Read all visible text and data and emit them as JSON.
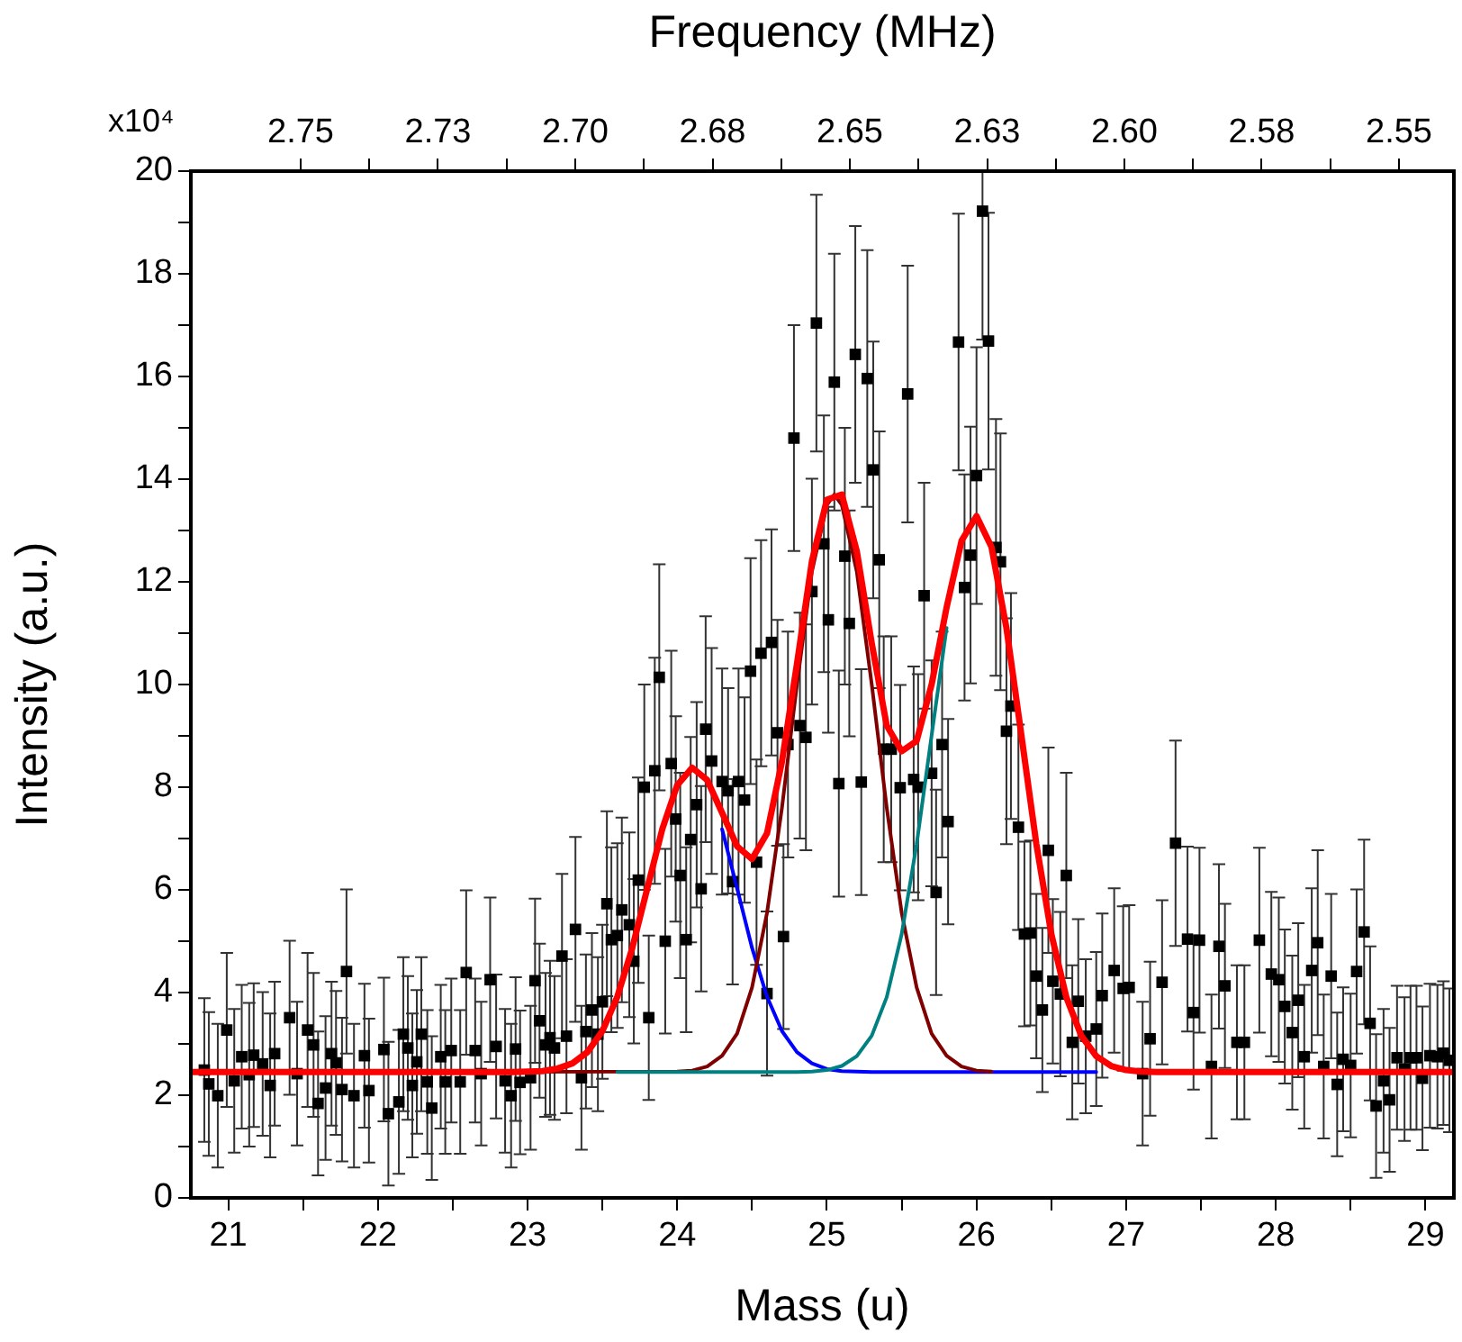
{
  "chart_data": {
    "type": "scatter",
    "xlabel": "Mass (u)",
    "ylabel": "Intensity (a.u.)",
    "x2label": "Frequency (MHz)",
    "annotations": [
      "x10⁴"
    ],
    "marker": "square",
    "xlim": [
      20.75,
      29.19
    ],
    "xticks": [
      21,
      {
        "value": 21.5,
        "label": null
      },
      22,
      {
        "value": 22.5,
        "label": null
      },
      23,
      {
        "value": 23.5,
        "label": null
      },
      24,
      {
        "value": 24.5,
        "label": null
      },
      25,
      {
        "value": 25.5,
        "label": null
      },
      26,
      {
        "value": 26.5,
        "label": null
      },
      27,
      {
        "value": 27.5,
        "label": null
      },
      28,
      {
        "value": 28.5,
        "label": null
      },
      29
    ],
    "x2lim": [
      2.77,
      2.54
    ],
    "x2ticks": [
      {
        "value": 2.75,
        "label": "2.75"
      },
      {
        "value": 2.7375,
        "label": null
      },
      {
        "value": 2.725,
        "label": "2.73"
      },
      {
        "value": 2.7125,
        "label": null
      },
      {
        "value": 2.7,
        "label": "2.70"
      },
      {
        "value": 2.6875,
        "label": null
      },
      {
        "value": 2.675,
        "label": "2.68"
      },
      {
        "value": 2.6625,
        "label": null
      },
      {
        "value": 2.65,
        "label": "2.65"
      },
      {
        "value": 2.6375,
        "label": null
      },
      {
        "value": 2.625,
        "label": "2.63"
      },
      {
        "value": 2.6125,
        "label": null
      },
      {
        "value": 2.6,
        "label": "2.60"
      },
      {
        "value": 2.5875,
        "label": null
      },
      {
        "value": 2.575,
        "label": "2.58"
      },
      {
        "value": 2.5625,
        "label": null
      },
      {
        "value": 2.55,
        "label": "2.55"
      }
    ],
    "ylim": [
      0,
      20
    ],
    "yticks": [
      0,
      {
        "value": 1,
        "label": null
      },
      2,
      {
        "value": 3,
        "label": null
      },
      4,
      {
        "value": 5,
        "label": null
      },
      6,
      {
        "value": 7,
        "label": null
      },
      8,
      {
        "value": 9,
        "label": null
      },
      10,
      {
        "value": 11,
        "label": null
      },
      12,
      {
        "value": 13,
        "label": null
      },
      14,
      {
        "value": 15,
        "label": null
      },
      16,
      {
        "value": 17,
        "label": null
      },
      18,
      {
        "value": 19,
        "label": null
      },
      20
    ],
    "series": [
      {
        "type": "scatter",
        "color": "#000000",
        "x": [
          20.84,
          20.87,
          20.93,
          20.99,
          21.04,
          21.09,
          21.14,
          21.17,
          21.23,
          21.28,
          21.31,
          21.41,
          21.46,
          21.53,
          21.57,
          21.6,
          21.65,
          21.69,
          21.72,
          21.76,
          21.79,
          21.84,
          21.91,
          21.94,
          22.04,
          22.07,
          22.14,
          22.17,
          22.2,
          22.23,
          22.26,
          22.29,
          22.33,
          22.36,
          22.42,
          22.45,
          22.49,
          22.55,
          22.59,
          22.65,
          22.69,
          22.75,
          22.79,
          22.85,
          22.89,
          22.92,
          22.95,
          23.02,
          23.05,
          23.08,
          23.12,
          23.15,
          23.18,
          23.23,
          23.26,
          23.32,
          23.36,
          23.39,
          23.43,
          23.47,
          23.5,
          23.53,
          23.56,
          23.6,
          23.63,
          23.68,
          23.71,
          23.74,
          23.78,
          23.81,
          23.85,
          23.88,
          23.92,
          23.96,
          23.99,
          24.02,
          24.06,
          24.09,
          24.13,
          24.16,
          24.19,
          24.23,
          24.3,
          24.34,
          24.37,
          24.41,
          24.45,
          24.49,
          24.53,
          24.56,
          24.6,
          24.63,
          24.67,
          24.71,
          24.74,
          24.78,
          24.82,
          24.86,
          24.9,
          24.93,
          24.98,
          25.01,
          25.05,
          25.08,
          25.12,
          25.15,
          25.19,
          25.23,
          25.27,
          25.31,
          25.35,
          25.38,
          25.43,
          25.49,
          25.54,
          25.58,
          25.61,
          25.65,
          25.7,
          25.73,
          25.77,
          25.81,
          25.88,
          25.92,
          25.96,
          26.0,
          26.04,
          26.08,
          26.13,
          26.16,
          26.2,
          26.23,
          26.28,
          26.32,
          26.36,
          26.4,
          26.44,
          26.48,
          26.51,
          26.56,
          26.6,
          26.64,
          26.68,
          26.73,
          26.8,
          26.84,
          26.92,
          26.98,
          27.02,
          27.11,
          27.16,
          27.24,
          27.33,
          27.41,
          27.45,
          27.49,
          27.57,
          27.62,
          27.66,
          27.74,
          27.79,
          27.89,
          27.97,
          28.02,
          28.06,
          28.11,
          28.15,
          28.19,
          28.24,
          28.28,
          28.32,
          28.37,
          28.41,
          28.45,
          28.5,
          28.54,
          28.59,
          28.63,
          28.67,
          28.72,
          28.76,
          28.81,
          28.86,
          28.9,
          28.94,
          28.98,
          29.03,
          29.08,
          29.12,
          29.16
        ],
        "values": [
          2.49,
          2.22,
          1.99,
          3.27,
          2.28,
          2.75,
          2.4,
          2.78,
          2.61,
          2.19,
          2.81,
          3.51,
          2.42,
          3.27,
          2.98,
          1.84,
          2.14,
          2.81,
          2.63,
          2.11,
          4.41,
          1.99,
          2.77,
          2.09,
          2.89,
          1.64,
          1.87,
          3.19,
          2.92,
          2.19,
          2.65,
          3.19,
          2.26,
          1.75,
          2.75,
          2.26,
          2.87,
          2.26,
          4.39,
          2.87,
          2.42,
          4.25,
          2.95,
          2.28,
          1.99,
          2.9,
          2.25,
          2.34,
          4.23,
          3.45,
          2.98,
          3.12,
          2.92,
          4.71,
          3.15,
          5.23,
          2.34,
          3.24,
          3.66,
          3.19,
          3.82,
          5.73,
          5.03,
          5.11,
          5.61,
          5.32,
          4.61,
          6.19,
          8.0,
          3.51,
          8.32,
          10.14,
          5.0,
          8.46,
          7.38,
          6.28,
          5.03,
          6.98,
          7.66,
          6.02,
          9.13,
          8.51,
          8.11,
          7.93,
          6.16,
          8.11,
          7.75,
          10.26,
          6.54,
          10.61,
          3.98,
          10.82,
          9.06,
          5.09,
          8.83,
          14.8,
          9.2,
          8.97,
          11.81,
          17.04,
          12.74,
          11.26,
          15.89,
          8.07,
          12.5,
          11.19,
          16.43,
          8.1,
          15.96,
          14.18,
          12.43,
          8.74,
          8.74,
          7.99,
          15.66,
          8.15,
          8.0,
          11.73,
          8.27,
          5.95,
          8.83,
          7.33,
          16.67,
          11.89,
          12.52,
          14.07,
          19.22,
          16.69,
          12.67,
          12.39,
          9.09,
          9.58,
          7.22,
          5.14,
          5.16,
          4.32,
          3.66,
          6.77,
          4.22,
          3.97,
          6.28,
          3.03,
          3.83,
          3.15,
          3.29,
          3.94,
          4.43,
          4.08,
          4.1,
          2.42,
          3.1,
          4.2,
          6.91,
          5.04,
          3.61,
          5.02,
          2.56,
          4.9,
          4.13,
          3.03,
          3.03,
          5.02,
          4.36,
          4.25,
          3.73,
          3.22,
          3.85,
          2.75,
          4.43,
          4.97,
          2.56,
          4.32,
          2.21,
          2.7,
          2.58,
          4.41,
          5.18,
          3.4,
          1.79,
          2.28,
          1.91,
          2.73,
          2.51,
          2.73,
          2.73,
          2.33,
          2.77,
          2.75,
          2.82,
          2.68
        ],
        "errors": [
          1.4,
          1.4,
          1.4,
          1.5,
          1.4,
          1.4,
          1.4,
          1.4,
          1.4,
          1.4,
          1.4,
          1.5,
          1.4,
          1.5,
          1.4,
          1.4,
          1.4,
          1.4,
          1.4,
          1.4,
          1.6,
          1.4,
          1.4,
          1.4,
          1.4,
          1.4,
          1.4,
          1.5,
          1.4,
          1.4,
          1.4,
          1.5,
          1.4,
          1.4,
          1.4,
          1.4,
          1.4,
          1.4,
          1.6,
          1.4,
          1.4,
          1.6,
          1.4,
          1.4,
          1.4,
          1.4,
          1.4,
          1.4,
          1.6,
          1.5,
          1.4,
          1.5,
          1.4,
          1.6,
          1.5,
          1.8,
          1.4,
          1.5,
          1.5,
          1.5,
          1.5,
          1.8,
          1.8,
          1.8,
          1.8,
          1.8,
          1.6,
          2.0,
          2.0,
          1.6,
          2.2,
          2.2,
          1.8,
          2.2,
          2.0,
          2.0,
          1.8,
          2.0,
          2.0,
          2.0,
          2.2,
          2.2,
          2.2,
          2.0,
          2.0,
          2.2,
          2.0,
          2.2,
          2.0,
          2.2,
          1.6,
          2.2,
          2.2,
          1.8,
          2.2,
          2.2,
          2.2,
          2.2,
          2.2,
          2.5,
          2.5,
          2.2,
          2.5,
          2.2,
          2.5,
          2.2,
          2.5,
          2.2,
          2.5,
          2.5,
          2.5,
          2.2,
          2.2,
          2.0,
          2.5,
          2.2,
          2.2,
          2.2,
          2.2,
          2.0,
          2.2,
          2.0,
          2.5,
          2.2,
          2.5,
          2.5,
          2.5,
          2.5,
          2.5,
          2.5,
          2.2,
          2.2,
          2.0,
          1.8,
          1.8,
          1.6,
          1.6,
          2.0,
          1.6,
          1.6,
          2.0,
          1.5,
          1.6,
          1.5,
          1.5,
          1.6,
          1.6,
          1.6,
          1.6,
          1.4,
          1.5,
          1.6,
          2.0,
          1.8,
          1.5,
          1.8,
          1.4,
          1.6,
          1.6,
          1.5,
          1.5,
          1.8,
          1.6,
          1.6,
          1.5,
          1.5,
          1.5,
          1.4,
          1.6,
          1.8,
          1.4,
          1.6,
          1.4,
          1.4,
          1.4,
          1.6,
          1.8,
          1.5,
          1.4,
          1.4,
          1.4,
          1.4,
          1.4,
          1.4,
          1.4,
          1.4,
          1.4,
          1.4,
          1.4,
          1.4
        ]
      },
      {
        "type": "line",
        "color": "#0000ff",
        "marker": "none",
        "x": [
          24.3,
          24.4,
          24.5,
          24.6,
          24.7,
          24.8,
          24.9,
          25.0,
          25.1,
          25.2,
          25.3,
          26.8
        ],
        "values": [
          7.18,
          6.03,
          4.87,
          3.92,
          3.25,
          2.84,
          2.62,
          2.51,
          2.47,
          2.46,
          2.45,
          2.45
        ]
      },
      {
        "type": "line",
        "color": "#800000",
        "marker": "none",
        "x": [
          20.75,
          24.0,
          24.1,
          24.2,
          24.3,
          24.4,
          24.5,
          24.6,
          24.7,
          24.8,
          24.9,
          25.0,
          25.05,
          25.1,
          25.2,
          25.3,
          25.4,
          25.5,
          25.6,
          25.7,
          25.8,
          25.9,
          26.0,
          26.1
        ],
        "values": [
          2.45,
          2.46,
          2.48,
          2.56,
          2.77,
          3.2,
          4.1,
          5.55,
          7.6,
          10.0,
          12.2,
          13.5,
          13.7,
          13.5,
          12.2,
          10.0,
          7.6,
          5.55,
          4.1,
          3.2,
          2.77,
          2.56,
          2.48,
          2.46
        ]
      },
      {
        "type": "line",
        "color": "#008080",
        "marker": "none",
        "x": [
          23.6,
          24.8,
          24.9,
          25.0,
          25.1,
          25.2,
          25.3,
          25.4,
          25.5,
          25.6,
          25.7,
          25.8
        ],
        "values": [
          2.45,
          2.45,
          2.46,
          2.49,
          2.57,
          2.76,
          3.16,
          3.91,
          5.14,
          6.89,
          9.01,
          11.1
        ]
      },
      {
        "type": "line",
        "color": "#ff0000",
        "marker": "none",
        "x": [
          20.75,
          22.8,
          22.9,
          23.0,
          23.1,
          23.2,
          23.3,
          23.4,
          23.5,
          23.6,
          23.7,
          23.8,
          23.9,
          24.0,
          24.1,
          24.2,
          24.3,
          24.4,
          24.5,
          24.6,
          24.7,
          24.8,
          24.9,
          25.0,
          25.1,
          25.2,
          25.3,
          25.4,
          25.5,
          25.6,
          25.7,
          25.8,
          25.9,
          26.0,
          26.1,
          26.2,
          26.3,
          26.4,
          26.5,
          26.6,
          26.7,
          26.8,
          26.9,
          27.0,
          27.1,
          27.2,
          27.3,
          29.19
        ],
        "values": [
          2.45,
          2.45,
          2.45,
          2.46,
          2.47,
          2.52,
          2.62,
          2.84,
          3.25,
          3.92,
          4.87,
          6.03,
          7.18,
          8.04,
          8.38,
          8.14,
          7.5,
          6.85,
          6.6,
          7.1,
          8.5,
          10.4,
          12.4,
          13.6,
          13.7,
          12.6,
          10.8,
          9.2,
          8.7,
          8.9,
          10.0,
          11.5,
          12.8,
          13.28,
          12.68,
          11.1,
          9.01,
          6.89,
          5.14,
          3.91,
          3.16,
          2.76,
          2.57,
          2.49,
          2.46,
          2.45,
          2.45,
          2.45
        ]
      }
    ]
  }
}
